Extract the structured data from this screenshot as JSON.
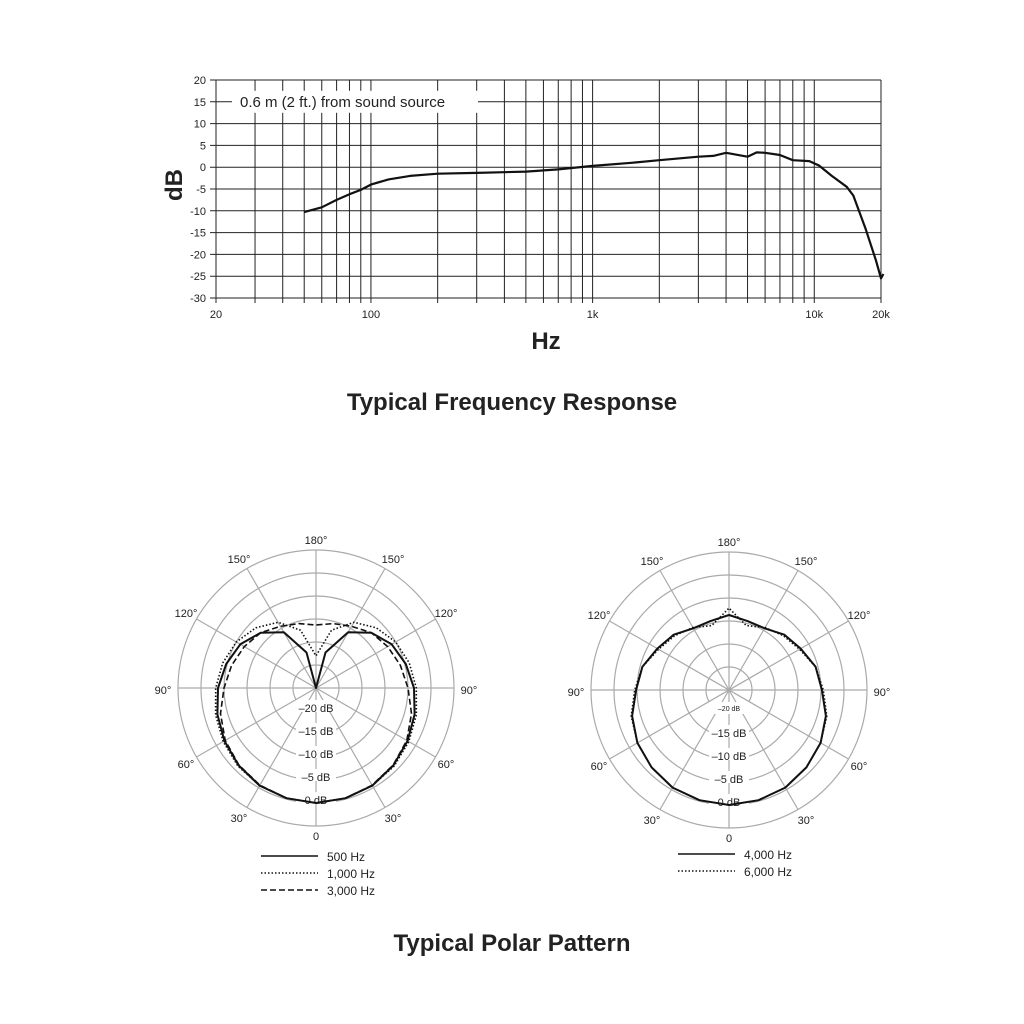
{
  "chart_data": [
    {
      "type": "line",
      "title": "Typical Frequency Response",
      "xlabel": "Hz",
      "ylabel": "dB",
      "annotation": "0.6 m (2 ft.) from sound source",
      "x_scale": "log",
      "xlim": [
        20,
        20000
      ],
      "ylim": [
        -30,
        20
      ],
      "grid": true,
      "x_tick_labels": [
        "20",
        "100",
        "1k",
        "10k",
        "20k"
      ],
      "x_ticks": [
        20,
        100,
        1000,
        10000,
        20000
      ],
      "y_ticks": [
        20,
        15,
        10,
        5,
        0,
        -5,
        -10,
        -15,
        -20,
        -25,
        -30
      ],
      "series": [
        {
          "x": [
            50,
            60,
            70,
            80,
            90,
            100,
            120,
            150,
            200,
            300,
            500,
            700,
            1000,
            1500,
            2000,
            3000,
            3500,
            4000,
            5000,
            5500,
            6000,
            7000,
            8000,
            9500,
            10500,
            12000,
            14000,
            15000,
            17000,
            19000,
            20000,
            20500
          ],
          "y": [
            -10.3,
            -9.2,
            -7.5,
            -6.2,
            -5.2,
            -4,
            -2.8,
            -2,
            -1.5,
            -1.3,
            -1,
            -0.5,
            0.3,
            1,
            1.6,
            2.4,
            2.6,
            3.3,
            2.4,
            3.4,
            3.3,
            2.8,
            1.6,
            1.4,
            0.4,
            -2,
            -4.5,
            -6.5,
            -14,
            -21.5,
            -25.5,
            -24.5
          ]
        }
      ]
    },
    {
      "type": "polar",
      "title": "Typical Polar Pattern",
      "angle_labels": [
        "180°",
        "150°",
        "150°",
        "120°",
        "120°",
        "90°",
        "90°",
        "60°",
        "60°",
        "30°",
        "30°",
        "0"
      ],
      "ring_labels": [
        "0 dB",
        "–5 dB",
        "–10 dB",
        "–15 dB",
        "–20 dB"
      ],
      "rlim": [
        -25,
        5
      ],
      "angles": [
        0,
        15,
        30,
        45,
        60,
        75,
        90,
        105,
        120,
        135,
        150,
        165,
        180
      ],
      "series": [
        {
          "name": "500 Hz",
          "style": "solid",
          "values": [
            0,
            -0.2,
            -0.5,
            -1.2,
            -2,
            -2.8,
            -3.7,
            -4.8,
            -6,
            -8,
            -11,
            -17,
            -25
          ]
        },
        {
          "name": "1,000 Hz",
          "style": "dotted",
          "values": [
            0,
            -0.2,
            -0.5,
            -1,
            -1.7,
            -2.4,
            -3.2,
            -4,
            -5,
            -6.5,
            -8.5,
            -12,
            -18
          ]
        },
        {
          "name": "3,000 Hz",
          "style": "dashed",
          "values": [
            0,
            -0.2,
            -0.6,
            -1.3,
            -2.2,
            -3.5,
            -5,
            -6,
            -7,
            -8,
            -9.5,
            -10.5,
            -11.3
          ]
        }
      ]
    },
    {
      "type": "polar",
      "angle_labels": [
        "180°",
        "150°",
        "150°",
        "120°",
        "120°",
        "90°",
        "90°",
        "60°",
        "60°",
        "30°",
        "30°",
        "0"
      ],
      "ring_labels": [
        "0 dB",
        "–5 dB",
        "–10 dB",
        "–15 dB",
        "–20 dB"
      ],
      "rlim": [
        -25,
        5
      ],
      "angles": [
        0,
        15,
        30,
        45,
        60,
        75,
        90,
        105,
        120,
        135,
        150,
        165,
        180
      ],
      "series": [
        {
          "name": "4,000 Hz",
          "style": "solid",
          "values": [
            0,
            -0.2,
            -0.5,
            -1.2,
            -2,
            -3.2,
            -4.8,
            -5.5,
            -7,
            -8,
            -9.5,
            -9.5,
            -8.7
          ]
        },
        {
          "name": "6,000 Hz",
          "style": "dotted",
          "values": [
            0,
            -0.2,
            -0.5,
            -1.2,
            -2,
            -3,
            -4.5,
            -5.5,
            -7.3,
            -8.3,
            -9.3,
            -10.5,
            -7.2
          ]
        }
      ]
    }
  ],
  "titles": {
    "frequency": "Typical Frequency Response",
    "polar": "Typical Polar Pattern"
  }
}
